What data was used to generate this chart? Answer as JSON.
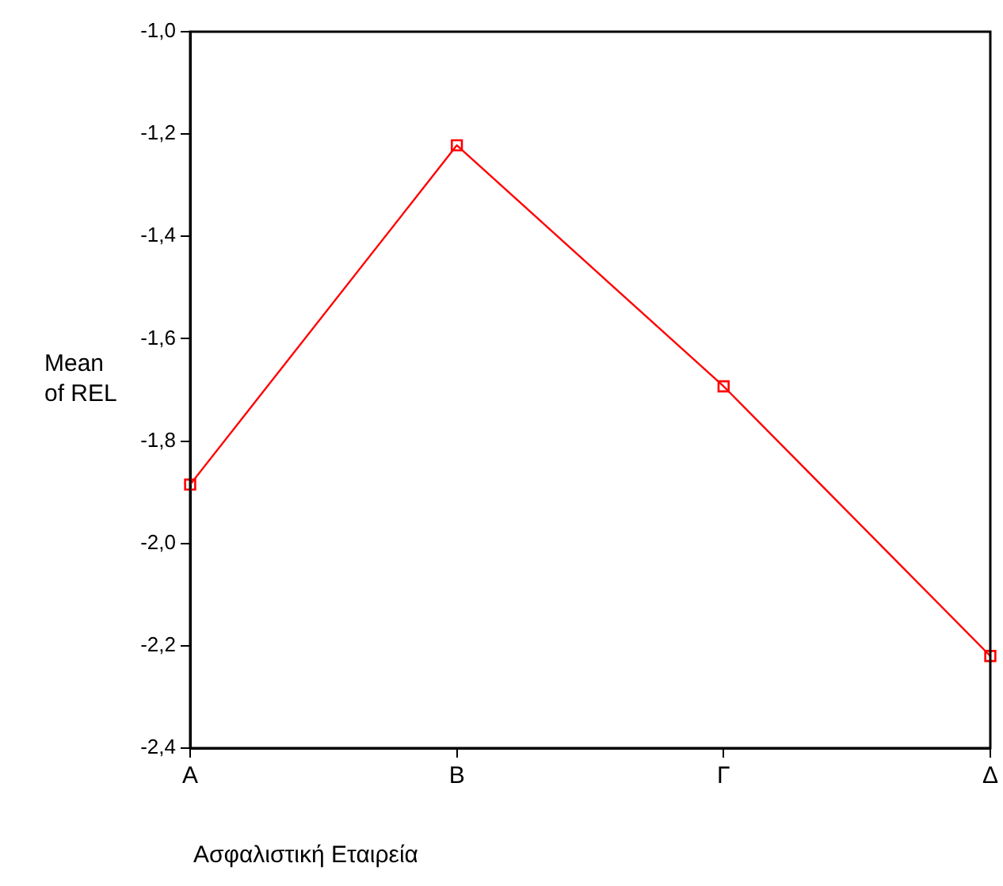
{
  "chart_data": {
    "type": "line",
    "xlabel": "Ασφαλιστική Εταιρεία",
    "ylabel": "Mean of REL",
    "categories": [
      "Α",
      "Β",
      "Γ",
      "Δ"
    ],
    "series": [
      {
        "color": "#ff0000",
        "values": [
          -1.885,
          -1.222,
          -1.693,
          -2.22
        ]
      }
    ],
    "ylim": [
      -2.4,
      -1.0
    ],
    "yticks": [
      {
        "value": -2.4,
        "label": "-2,4"
      },
      {
        "value": -2.2,
        "label": "-2,2"
      },
      {
        "value": -2.0,
        "label": "-2,0"
      },
      {
        "value": -1.8,
        "label": "-1,8"
      },
      {
        "value": -1.6,
        "label": "-1,6"
      },
      {
        "value": -1.4,
        "label": "-1,4"
      },
      {
        "value": -1.2,
        "label": "-1,2"
      },
      {
        "value": -1.0,
        "label": "-1,0"
      }
    ],
    "grid": false,
    "legend": false,
    "marker": "square",
    "line_style": "solid"
  }
}
